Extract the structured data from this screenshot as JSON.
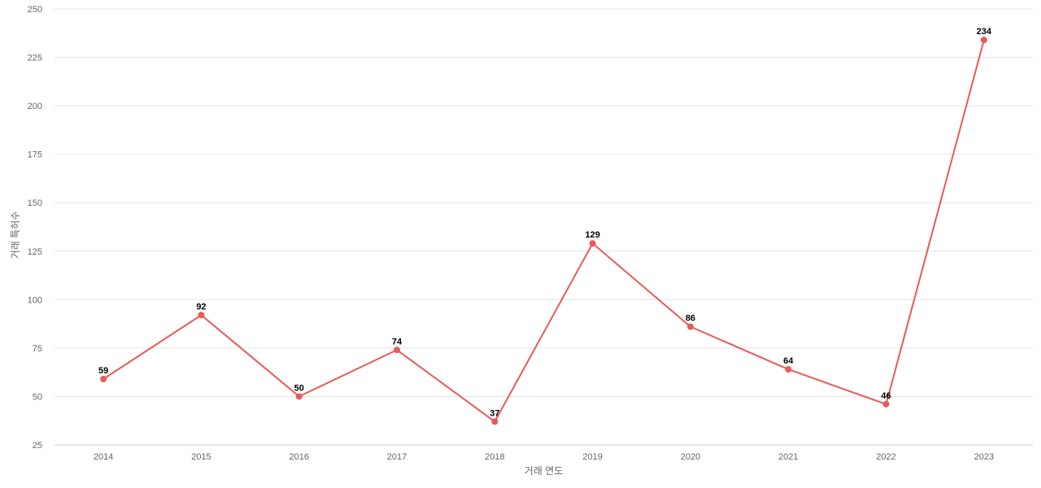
{
  "chart_data": {
    "type": "line",
    "title": "",
    "xlabel": "거래 연도",
    "ylabel": "거래 특허수",
    "categories": [
      "2014",
      "2015",
      "2016",
      "2017",
      "2018",
      "2019",
      "2020",
      "2021",
      "2022",
      "2023"
    ],
    "series": [
      {
        "values": [
          59,
          92,
          50,
          74,
          37,
          129,
          86,
          64,
          46,
          234
        ],
        "color": "#e85a5a"
      }
    ],
    "ylim": [
      25,
      250
    ],
    "yticks": [
      25,
      50,
      75,
      100,
      125,
      150,
      175,
      200,
      225,
      250
    ],
    "grid": true,
    "legend": "none",
    "data_labels": true
  }
}
